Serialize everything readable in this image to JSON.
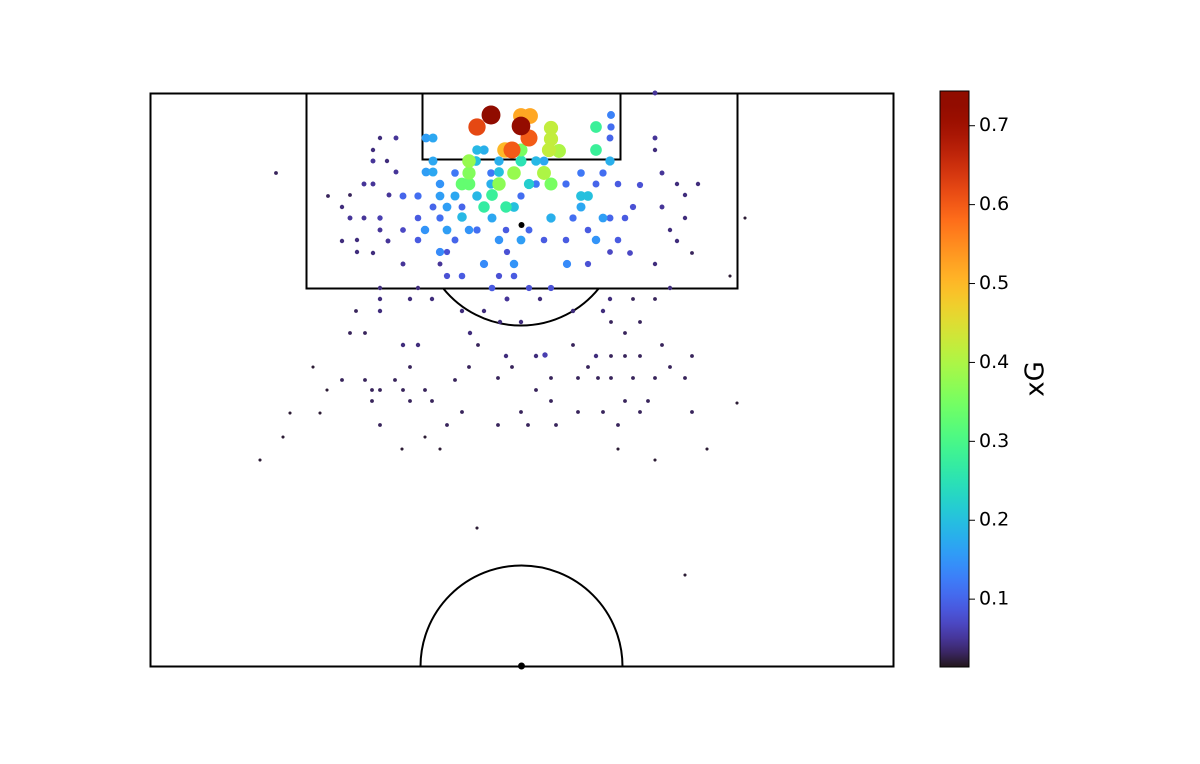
{
  "chart_data": {
    "type": "scatter",
    "xlim": [
      0,
      743
    ],
    "ylim": [
      573,
      0
    ],
    "colormap": "turbo",
    "x": [
      341,
      371,
      327,
      379,
      371,
      380,
      362,
      355,
      401,
      401,
      399,
      409,
      319,
      319,
      312,
      319,
      349,
      401,
      364,
      394,
      371,
      446,
      446,
      334,
      356,
      342,
      379,
      371,
      276,
      283,
      327,
      334,
      283,
      326,
      349,
      386,
      394,
      460,
      276,
      283,
      349,
      290,
      341,
      290,
      305,
      327,
      431,
      438,
      297,
      312,
      342,
      364,
      401,
      431,
      453,
      275,
      297,
      319,
      349,
      371,
      446,
      290,
      334,
      364,
      417,
      461,
      253,
      268,
      268,
      283,
      290,
      312,
      268,
      305,
      327,
      356,
      379,
      394,
      423,
      438,
      460,
      475,
      483,
      416,
      438,
      468,
      305,
      341,
      371,
      386,
      416,
      431,
      446,
      453,
      468,
      297,
      312,
      349,
      364,
      379,
      401,
      342,
      461,
      460,
      490,
      253,
      297,
      460,
      480,
      357,
      230,
      246,
      223,
      223,
      237,
      214,
      223,
      246,
      239,
      192,
      200,
      214,
      230,
      230,
      207,
      192,
      238,
      207,
      223,
      253,
      505,
      505,
      512,
      527,
      548,
      535,
      512,
      535,
      520,
      527,
      542,
      505,
      520,
      505,
      230,
      230,
      260,
      268,
      206,
      230,
      282,
      312,
      334,
      357,
      390,
      423,
      453,
      483,
      200,
      215,
      253,
      268,
      320,
      328,
      350,
      371,
      461,
      475,
      490,
      512,
      542,
      461,
      423,
      356,
      386,
      319,
      348,
      362,
      438,
      475,
      490,
      520,
      163,
      192,
      215,
      222,
      245,
      260,
      275,
      305,
      386,
      401,
      428,
      448,
      461,
      483,
      505,
      535,
      177,
      230,
      253,
      260,
      282,
      222,
      371,
      401,
      428,
      453,
      475,
      490,
      498,
      542,
      587,
      312,
      140,
      170,
      230,
      297,
      348,
      378,
      406,
      468,
      133,
      275,
      252,
      290,
      468,
      557,
      505,
      110,
      327,
      535,
      126,
      178,
      595,
      580,
      505,
      200,
      460,
      290,
      395,
      446
    ],
    "y": [
      22,
      33,
      34,
      45,
      23,
      23,
      57,
      57,
      35,
      46,
      57,
      58,
      68,
      80,
      91,
      91,
      91,
      91,
      80,
      80,
      57,
      34,
      57,
      114,
      114,
      102,
      91,
      68,
      45,
      45,
      57,
      57,
      68,
      68,
      68,
      68,
      68,
      68,
      79,
      79,
      79,
      91,
      91,
      103,
      103,
      103,
      103,
      103,
      114,
      124,
      125,
      114,
      125,
      114,
      125,
      137,
      137,
      137,
      147,
      147,
      147,
      159,
      171,
      171,
      171,
      22,
      103,
      103,
      125,
      114,
      125,
      114,
      147,
      147,
      137,
      137,
      137,
      147,
      125,
      137,
      125,
      125,
      114,
      147,
      171,
      147,
      80,
      80,
      103,
      91,
      91,
      80,
      91,
      80,
      91,
      183,
      183,
      183,
      183,
      195,
      195,
      195,
      34,
      45,
      92,
      137,
      159,
      159,
      160,
      159,
      45,
      45,
      57,
      68,
      68,
      91,
      91,
      79,
      102,
      114,
      125,
      125,
      125,
      137,
      147,
      148,
      148,
      159,
      160,
      171,
      45,
      57,
      80,
      91,
      91,
      102,
      114,
      125,
      137,
      148,
      160,
      171,
      195,
      206,
      195,
      206,
      206,
      195,
      218,
      218,
      206,
      218,
      218,
      206,
      206,
      218,
      218,
      206,
      240,
      240,
      252,
      252,
      240,
      252,
      229,
      229,
      229,
      240,
      229,
      252,
      263,
      263,
      252,
      263,
      263,
      274,
      285,
      274,
      274,
      263,
      263,
      274,
      274,
      287,
      287,
      297,
      287,
      274,
      297,
      287,
      297,
      285,
      285,
      285,
      285,
      285,
      285,
      285,
      297,
      297,
      297,
      308,
      308,
      308,
      319,
      308,
      319,
      319,
      308,
      319,
      308,
      319,
      310,
      319,
      320,
      320,
      332,
      332,
      332,
      332,
      332,
      332,
      344,
      344,
      356,
      356,
      356,
      356,
      367,
      367,
      435,
      482,
      80,
      103,
      125,
      183,
      0,
      102,
      206,
      171,
      262,
      263
    ],
    "values": [
      0.74,
      0.72,
      0.62,
      0.6,
      0.52,
      0.52,
      0.6,
      0.5,
      0.42,
      0.42,
      0.42,
      0.4,
      0.38,
      0.36,
      0.33,
      0.33,
      0.37,
      0.35,
      0.38,
      0.4,
      0.35,
      0.28,
      0.28,
      0.27,
      0.27,
      0.28,
      0.22,
      0.25,
      0.16,
      0.17,
      0.19,
      0.18,
      0.17,
      0.2,
      0.18,
      0.19,
      0.17,
      0.18,
      0.16,
      0.17,
      0.2,
      0.15,
      0.18,
      0.16,
      0.17,
      0.19,
      0.2,
      0.2,
      0.16,
      0.19,
      0.17,
      0.2,
      0.18,
      0.17,
      0.16,
      0.15,
      0.16,
      0.15,
      0.15,
      0.16,
      0.15,
      0.14,
      0.14,
      0.15,
      0.14,
      0.13,
      0.1,
      0.11,
      0.09,
      0.1,
      0.11,
      0.1,
      0.09,
      0.1,
      0.11,
      0.09,
      0.1,
      0.09,
      0.11,
      0.09,
      0.1,
      0.09,
      0.08,
      0.09,
      0.08,
      0.09,
      0.12,
      0.12,
      0.11,
      0.12,
      0.11,
      0.12,
      0.1,
      0.11,
      0.09,
      0.08,
      0.09,
      0.08,
      0.09,
      0.08,
      0.08,
      0.09,
      0.11,
      0.1,
      0.08,
      0.07,
      0.08,
      0.07,
      0.07,
      0.08,
      0.04,
      0.05,
      0.04,
      0.05,
      0.04,
      0.05,
      0.05,
      0.05,
      0.05,
      0.04,
      0.05,
      0.05,
      0.06,
      0.05,
      0.04,
      0.04,
      0.05,
      0.04,
      0.04,
      0.05,
      0.05,
      0.04,
      0.05,
      0.04,
      0.04,
      0.04,
      0.05,
      0.04,
      0.04,
      0.04,
      0.03,
      0.04,
      0.04,
      0.03,
      0.04,
      0.04,
      0.04,
      0.04,
      0.03,
      0.04,
      0.04,
      0.04,
      0.04,
      0.05,
      0.04,
      0.04,
      0.04,
      0.03,
      0.03,
      0.03,
      0.04,
      0.04,
      0.04,
      0.03,
      0.04,
      0.04,
      0.03,
      0.03,
      0.03,
      0.03,
      0.03,
      0.03,
      0.03,
      0.04,
      0.04,
      0.03,
      0.03,
      0.03,
      0.03,
      0.03,
      0.03,
      0.03,
      0.02,
      0.03,
      0.03,
      0.03,
      0.03,
      0.03,
      0.03,
      0.03,
      0.03,
      0.03,
      0.03,
      0.03,
      0.03,
      0.03,
      0.03,
      0.03,
      0.02,
      0.03,
      0.03,
      0.03,
      0.03,
      0.03,
      0.03,
      0.03,
      0.03,
      0.03,
      0.03,
      0.03,
      0.03,
      0.03,
      0.02,
      0.03,
      0.02,
      0.02,
      0.03,
      0.03,
      0.03,
      0.03,
      0.03,
      0.03,
      0.02,
      0.02,
      0.02,
      0.02,
      0.02,
      0.02,
      0.02,
      0.02,
      0.02,
      0.02,
      0.03,
      0.03,
      0.02,
      0.02,
      0.05,
      0.03,
      0.04,
      0.05,
      0.06,
      0.04
    ],
    "colorbar": {
      "label": "xG",
      "lim": [
        0.014,
        0.744
      ],
      "ticks": [
        0.1,
        0.2,
        0.3,
        0.4,
        0.5,
        0.6,
        0.7
      ]
    }
  }
}
